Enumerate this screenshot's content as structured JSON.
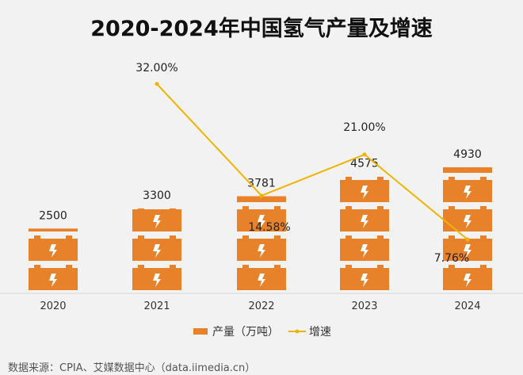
{
  "chart_data": {
    "type": "bar",
    "title": "2020-2024年中国氢气产量及增速",
    "categories": [
      "2020",
      "2021",
      "2022",
      "2023",
      "2024"
    ],
    "series": [
      {
        "name": "产量（万吨）",
        "type": "pictorial-bar",
        "values": [
          2500,
          3300,
          3781,
          4575,
          4930
        ],
        "labels": [
          "2500",
          "3300",
          "3781",
          "4575",
          "4930"
        ],
        "color": "#e8822a"
      },
      {
        "name": "增速",
        "type": "line",
        "values": [
          null,
          32.0,
          14.58,
          21.0,
          7.76
        ],
        "labels": [
          "",
          "32.00%",
          "14.58%",
          "21.00%",
          "7.76%"
        ],
        "color": "#f0b400"
      }
    ],
    "legend": "bottom-center",
    "grid": false
  },
  "source": "数据来源：CPIA、艾媒数据中心（data.iimedia.cn）"
}
